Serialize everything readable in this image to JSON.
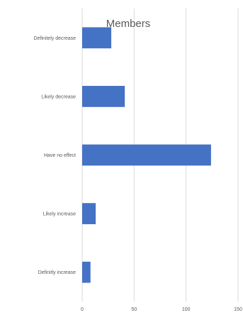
{
  "chart_data": {
    "type": "bar",
    "orientation": "horizontal",
    "title": "Members",
    "xlabel": "",
    "ylabel": "",
    "categories": [
      "Definitely decrease",
      "Likely decrease",
      "Have no effect",
      "Likely increase",
      "Definitly increase"
    ],
    "values": [
      28,
      41,
      124,
      13,
      8
    ],
    "xlim": [
      0,
      150
    ],
    "xticks": [
      0,
      50,
      100,
      150
    ],
    "grid": true,
    "legend": "none",
    "bar_color": "#4472c4"
  }
}
